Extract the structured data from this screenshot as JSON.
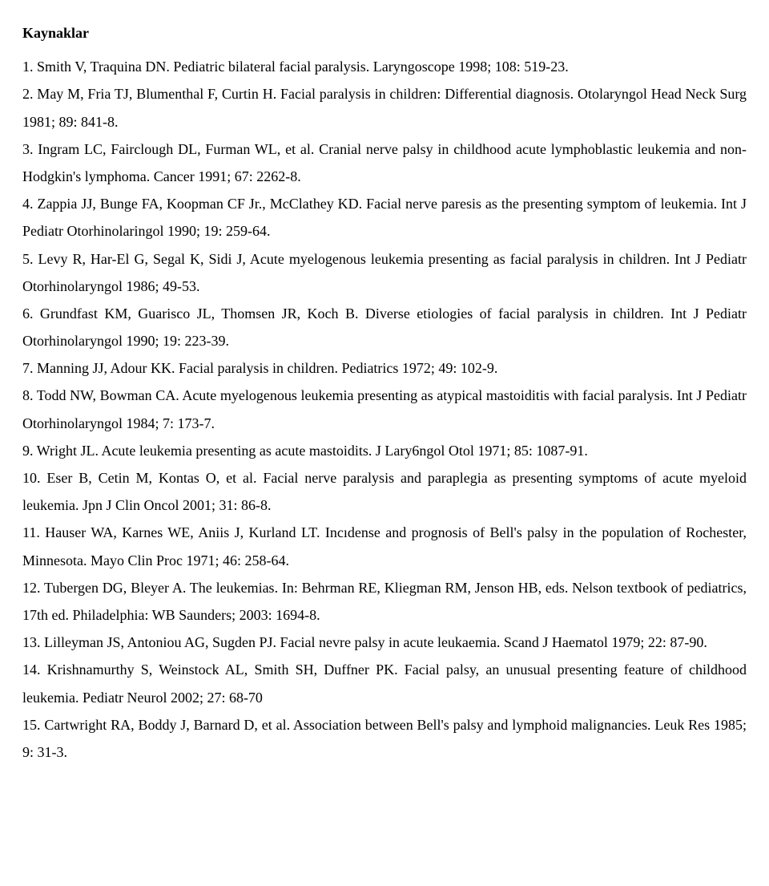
{
  "heading": "Kaynaklar",
  "refs": [
    "1. Smith V, Traquina DN. Pediatric bilateral facial paralysis. Laryngoscope 1998; 108: 519-23.",
    "2. May M, Fria TJ, Blumenthal F, Curtin H. Facial paralysis in children: Differential diagnosis. Otolaryngol Head Neck Surg 1981; 89: 841-8.",
    "3. Ingram LC, Fairclough DL, Furman WL, et al. Cranial nerve palsy in childhood acute lymphoblastic leukemia and non-Hodgkin's lymphoma. Cancer 1991; 67: 2262-8.",
    "4. Zappia JJ, Bunge FA, Koopman CF Jr., McClathey KD. Facial nerve paresis as the presenting symptom of leukemia. Int J Pediatr Otorhinolaringol 1990; 19: 259-64.",
    "5. Levy R, Har-El G, Segal K, Sidi J, Acute myelogenous leukemia presenting as facial paralysis in children. Int J Pediatr Otorhinolaryngol 1986; 49-53.",
    "6. Grundfast KM, Guarisco JL, Thomsen JR, Koch B. Diverse etiologies of facial paralysis in children. Int J Pediatr Otorhinolaryngol 1990; 19: 223-39.",
    "7. Manning JJ, Adour KK. Facial paralysis in children. Pediatrics 1972; 49: 102-9.",
    "8. Todd NW, Bowman CA. Acute myelogenous leukemia presenting as atypical mastoiditis with facial paralysis. Int J Pediatr Otorhinolaryngol 1984; 7: 173-7.",
    "9. Wright JL. Acute leukemia presenting as acute mastoidits. J Lary6ngol Otol 1971; 85: 1087-91.",
    "10. Eser B, Cetin M, Kontas O, et al. Facial nerve paralysis and paraplegia as presenting symptoms of acute myeloid leukemia. Jpn J Clin Oncol 2001; 31: 86-8.",
    "11. Hauser WA, Karnes WE, Aniis J, Kurland LT. Incıdense and prognosis of Bell's palsy in the population of Rochester, Minnesota. Mayo Clin  Proc 1971; 46: 258-64.",
    "12. Tubergen DG, Bleyer A. The leukemias. In: Behrman RE, Kliegman RM, Jenson HB, eds. Nelson textbook of pediatrics, 17th ed. Philadelphia: WB Saunders; 2003: 1694-8.",
    "13. Lilleyman JS, Antoniou AG, Sugden PJ. Facial nevre palsy in acute leukaemia. Scand J Haematol 1979; 22: 87-90.",
    "14. Krishnamurthy S, Weinstock AL, Smith SH, Duffner PK. Facial palsy, an unusual presenting feature of childhood leukemia. Pediatr Neurol 2002; 27: 68-70",
    "15. Cartwright RA, Boddy J, Barnard D, et al. Association between Bell's palsy and lymphoid malignancies. Leuk Res 1985; 9: 31-3."
  ]
}
